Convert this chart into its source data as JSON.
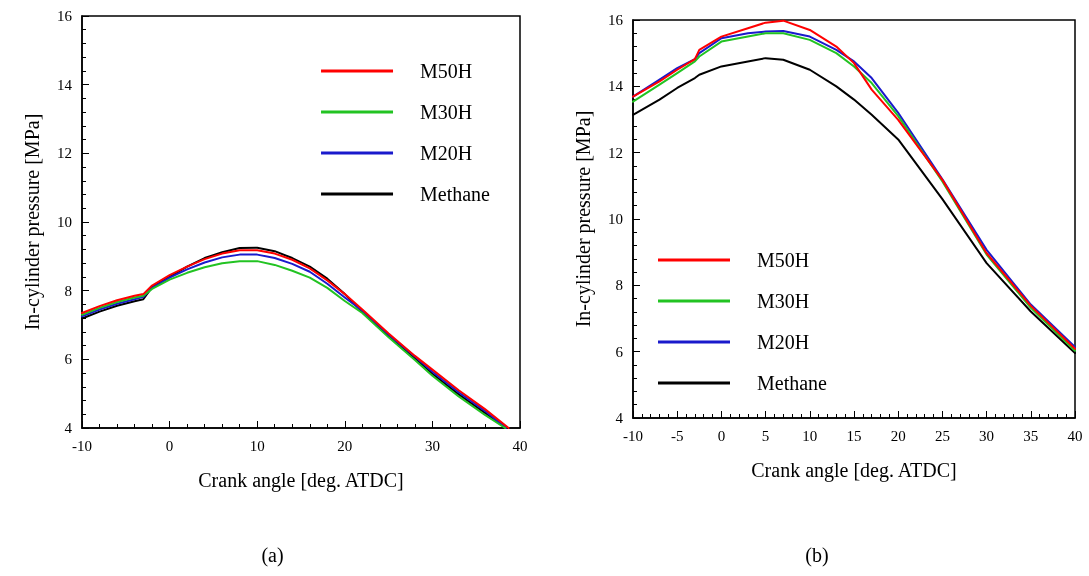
{
  "chart_data": [
    {
      "type": "line",
      "xlabel": "Crank angle [deg. ATDC]",
      "ylabel": "In-cylinder pressure [MPa]",
      "annotations": [
        "(a)"
      ],
      "xlim": [
        -10,
        40
      ],
      "xticks": [
        -10,
        0,
        10,
        20,
        30,
        40
      ],
      "ylim": [
        4,
        16
      ],
      "yticks": [
        4,
        6,
        8,
        10,
        12,
        14,
        16
      ],
      "grid": false,
      "legend": "top right",
      "marker": "none",
      "line_style": "solid",
      "series": [
        {
          "name": "M50H",
          "color": "#ff0000",
          "x": [
            -10,
            -8,
            -6,
            -4,
            -3,
            -2,
            0,
            2,
            4,
            6,
            8,
            10,
            12,
            14,
            16,
            18,
            20,
            22,
            25,
            28,
            30,
            33,
            36,
            38.7
          ],
          "values": [
            7.35,
            7.55,
            7.72,
            7.85,
            7.9,
            8.15,
            8.45,
            8.7,
            8.92,
            9.08,
            9.18,
            9.18,
            9.08,
            8.9,
            8.65,
            8.3,
            7.9,
            7.45,
            6.75,
            6.1,
            5.7,
            5.1,
            4.55,
            4.0
          ]
        },
        {
          "name": "M30H",
          "color": "#22c322",
          "x": [
            -10,
            -8,
            -6,
            -4,
            -3,
            -2,
            0,
            2,
            4,
            6,
            8,
            10,
            12,
            14,
            16,
            18,
            20,
            22,
            25,
            28,
            30,
            33,
            36,
            38.3
          ],
          "values": [
            7.3,
            7.5,
            7.67,
            7.8,
            7.85,
            8.05,
            8.32,
            8.52,
            8.68,
            8.8,
            8.86,
            8.86,
            8.75,
            8.58,
            8.38,
            8.08,
            7.7,
            7.35,
            6.64,
            5.98,
            5.52,
            4.92,
            4.38,
            4.0
          ]
        },
        {
          "name": "M20H",
          "color": "#1a1acc",
          "x": [
            -10,
            -8,
            -6,
            -4,
            -3,
            -2,
            0,
            2,
            4,
            6,
            8,
            10,
            12,
            14,
            16,
            18,
            20,
            22,
            25,
            28,
            30,
            33,
            36,
            38.4
          ],
          "values": [
            7.25,
            7.45,
            7.62,
            7.75,
            7.82,
            8.08,
            8.38,
            8.62,
            8.82,
            8.97,
            9.05,
            9.05,
            8.95,
            8.78,
            8.55,
            8.2,
            7.8,
            7.42,
            6.72,
            6.08,
            5.64,
            5.04,
            4.5,
            4.0
          ]
        },
        {
          "name": "Methane",
          "color": "#000000",
          "x": [
            -10,
            -8,
            -6,
            -4,
            -3,
            -2,
            0,
            2,
            4,
            6,
            8,
            10,
            12,
            14,
            16,
            18,
            20,
            22,
            25,
            28,
            30,
            33,
            36,
            38.45
          ],
          "values": [
            7.19,
            7.39,
            7.56,
            7.69,
            7.75,
            8.1,
            8.4,
            8.7,
            8.95,
            9.12,
            9.24,
            9.25,
            9.15,
            8.95,
            8.7,
            8.35,
            7.9,
            7.38,
            6.68,
            6.03,
            5.58,
            4.98,
            4.44,
            4.0
          ]
        }
      ]
    },
    {
      "type": "line",
      "xlabel": "Crank angle [deg. ATDC]",
      "ylabel": "In-cylinder pressure [MPa]",
      "annotations": [
        "(b)"
      ],
      "xlim": [
        -10,
        40
      ],
      "xticks": [
        -10,
        -5,
        0,
        5,
        10,
        15,
        20,
        25,
        30,
        35,
        40
      ],
      "ylim": [
        4,
        16
      ],
      "yticks": [
        4,
        6,
        8,
        10,
        12,
        14,
        16
      ],
      "grid": false,
      "legend": "bottom left",
      "marker": "none",
      "line_style": "solid",
      "series": [
        {
          "name": "M50H",
          "color": "#ff0000",
          "x": [
            -10,
            -7,
            -5,
            -3,
            -2.5,
            0,
            3,
            5,
            7,
            10,
            13,
            15,
            17,
            20,
            25,
            30,
            35,
            40
          ],
          "values": [
            13.69,
            14.15,
            14.5,
            14.82,
            15.1,
            15.5,
            15.75,
            15.92,
            15.98,
            15.7,
            15.2,
            14.7,
            13.9,
            12.99,
            11.18,
            8.97,
            7.38,
            6.09
          ]
        },
        {
          "name": "M30H",
          "color": "#22c322",
          "x": [
            -10,
            -7,
            -5,
            -3,
            -2.5,
            0,
            3,
            5,
            7,
            10,
            13,
            15,
            17,
            20,
            25,
            30,
            35,
            40
          ],
          "values": [
            13.54,
            14.05,
            14.4,
            14.75,
            14.9,
            15.35,
            15.5,
            15.6,
            15.6,
            15.4,
            15.0,
            14.6,
            14.1,
            13.1,
            11.13,
            8.93,
            7.32,
            6.03
          ]
        },
        {
          "name": "M20H",
          "color": "#1a1acc",
          "x": [
            -10,
            -7,
            -5,
            -3,
            -2.5,
            0,
            3,
            5,
            7,
            10,
            13,
            15,
            17,
            20,
            25,
            30,
            35,
            40
          ],
          "values": [
            13.69,
            14.2,
            14.55,
            14.82,
            15.0,
            15.45,
            15.6,
            15.65,
            15.67,
            15.5,
            15.1,
            14.75,
            14.25,
            13.2,
            11.2,
            9.07,
            7.42,
            6.14
          ]
        },
        {
          "name": "Methane",
          "color": "#000000",
          "x": [
            -10,
            -7,
            -5,
            -3,
            -2.5,
            0,
            3,
            5,
            7,
            10,
            13,
            15,
            17,
            20,
            25,
            30,
            35,
            40
          ],
          "values": [
            13.14,
            13.6,
            13.95,
            14.25,
            14.35,
            14.6,
            14.75,
            14.85,
            14.8,
            14.5,
            14.0,
            13.6,
            13.14,
            12.4,
            10.6,
            8.67,
            7.21,
            5.96
          ]
        }
      ]
    }
  ]
}
